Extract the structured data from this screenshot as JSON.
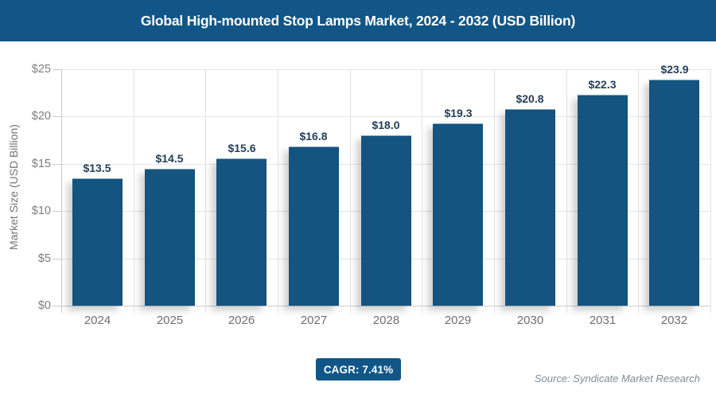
{
  "header": {
    "title": "Global High-mounted Stop Lamps Market, 2024 - 2032 (USD Billion)"
  },
  "chart_data": {
    "type": "bar",
    "title": "Global High-mounted Stop Lamps Market, 2024 - 2032 (USD Billion)",
    "categories": [
      "2024",
      "2025",
      "2026",
      "2027",
      "2028",
      "2029",
      "2030",
      "2031",
      "2032"
    ],
    "values": [
      13.5,
      14.5,
      15.6,
      16.8,
      18.0,
      19.3,
      20.8,
      22.3,
      23.9
    ],
    "data_labels": [
      "$13.5",
      "$14.5",
      "$15.6",
      "$16.8",
      "$18.0",
      "$19.3",
      "$20.8",
      "$22.3",
      "$23.9"
    ],
    "xlabel": "",
    "ylabel": "Market Size (USD Billion)",
    "ylim": [
      0,
      25
    ],
    "ytick_step": 5,
    "ytick_labels": [
      "$0",
      "$5",
      "$10",
      "$15",
      "$20",
      "$25"
    ],
    "grid": true,
    "legend_position": "none"
  },
  "footer": {
    "cagr_label": "CAGR: 7.41%",
    "source": "Source: Syndicate Market Research"
  },
  "colors": {
    "header_bg": "#115687",
    "bar": "#135480",
    "bar_value_label": "#243e58",
    "badge_bg": "#115687",
    "gridline": "#e5e5e5"
  }
}
